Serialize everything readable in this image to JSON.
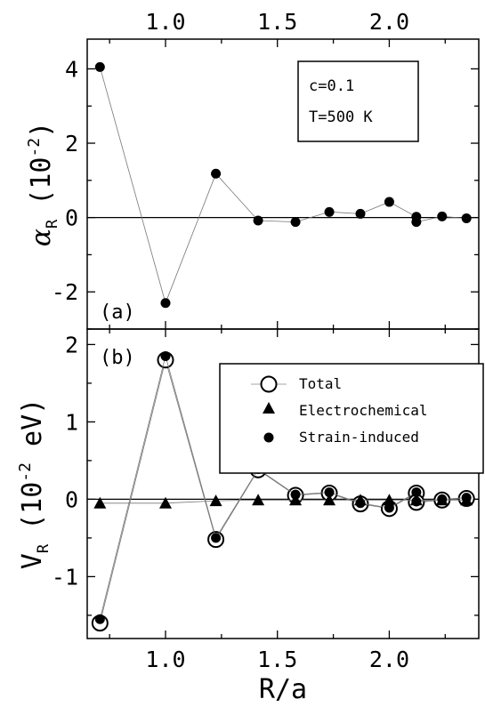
{
  "chart_data": [
    {
      "panel": "(a)",
      "type": "line",
      "xlabel": "R/a",
      "ylabel_symbol": "α",
      "ylabel_sub": "R",
      "ylabel_unit_prefix": "(10",
      "ylabel_unit_exp": "-2",
      "ylabel_unit_suffix": ")",
      "xlim": [
        0.65,
        2.4
      ],
      "ylim": [
        -3.0,
        4.8
      ],
      "xticks": [
        1.0,
        1.5,
        2.0
      ],
      "xtick_labels": [
        "1.0",
        "1.5",
        "2.0"
      ],
      "yticks": [
        -2,
        0,
        2,
        4
      ],
      "ytick_labels": [
        "-2",
        "0",
        "2",
        "4"
      ],
      "grid": false,
      "zero_line": true,
      "annotation": [
        "c=0.1",
        "T=500 K"
      ],
      "series": [
        {
          "marker": "filled-circle",
          "x": [
            0.707,
            1.0,
            1.225,
            1.414,
            1.581,
            1.732,
            1.871,
            2.0,
            2.121,
            2.121,
            2.236,
            2.345
          ],
          "y": [
            4.05,
            -2.3,
            1.18,
            -0.08,
            -0.12,
            0.15,
            0.1,
            0.42,
            0.02,
            -0.12,
            0.03,
            -0.02
          ]
        }
      ]
    },
    {
      "panel": "(b)",
      "type": "line",
      "xlabel": "R/a",
      "ylabel_symbol": "V",
      "ylabel_sub": "R",
      "ylabel_unit_prefix": "(10",
      "ylabel_unit_exp": "-2",
      "ylabel_unit_suffix": " eV)",
      "xlim": [
        0.65,
        2.4
      ],
      "ylim": [
        -1.8,
        2.2
      ],
      "xticks": [
        1.0,
        1.5,
        2.0
      ],
      "xtick_labels": [
        "1.0",
        "1.5",
        "2.0"
      ],
      "yticks": [
        -1,
        0,
        1,
        2
      ],
      "ytick_labels": [
        "-1",
        "0",
        "1",
        "2"
      ],
      "grid": false,
      "zero_line": true,
      "legend_position": "top-right",
      "series": [
        {
          "name": "Total",
          "marker": "open-circle",
          "x": [
            0.707,
            1.0,
            1.225,
            1.414,
            1.581,
            1.732,
            1.871,
            2.0,
            2.121,
            2.121,
            2.236,
            2.345
          ],
          "y": [
            -1.6,
            1.8,
            -0.52,
            0.38,
            0.05,
            0.08,
            -0.06,
            -0.12,
            0.08,
            -0.04,
            -0.01,
            0.01
          ]
        },
        {
          "name": "Electrochemical",
          "marker": "filled-triangle",
          "x": [
            0.707,
            1.0,
            1.225,
            1.414,
            1.581,
            1.732,
            1.871,
            2.0,
            2.121,
            2.236,
            2.345
          ],
          "y": [
            -0.05,
            -0.05,
            -0.02,
            -0.01,
            -0.01,
            -0.01,
            -0.01,
            -0.01,
            -0.01,
            -0.01,
            -0.01
          ]
        },
        {
          "name": "Strain-induced",
          "marker": "filled-circle",
          "x": [
            0.707,
            1.0,
            1.225,
            1.414,
            1.581,
            1.732,
            1.871,
            2.0,
            2.121,
            2.121,
            2.236,
            2.345
          ],
          "y": [
            -1.55,
            1.85,
            -0.5,
            0.39,
            0.06,
            0.09,
            -0.05,
            -0.11,
            0.09,
            -0.03,
            0.0,
            0.02
          ]
        }
      ]
    }
  ]
}
